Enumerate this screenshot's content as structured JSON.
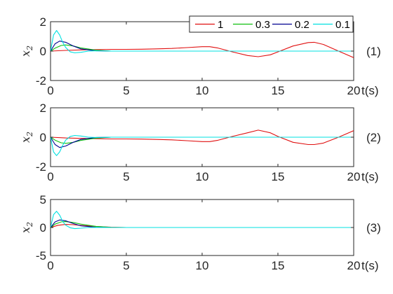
{
  "chart_data": [
    {
      "type": "line",
      "panel_label": "(1)",
      "ylabel": "x",
      "ylabel_sub": "2",
      "xlabel": "t(s)",
      "xlim": [
        0,
        20
      ],
      "ylim": [
        -2,
        2
      ],
      "xticks": [
        0,
        5,
        10,
        15,
        20
      ],
      "yticks": [
        -2,
        0,
        2
      ],
      "grid": false,
      "legend": "top-right",
      "series": [
        {
          "name": "1",
          "color": "#e01010",
          "x": [
            0,
            1,
            2,
            3,
            4,
            5,
            6,
            7,
            8,
            9,
            10,
            10.5,
            11,
            12,
            13,
            13.7,
            14.5,
            15,
            16,
            17,
            17.4,
            18,
            19,
            20
          ],
          "y": [
            0.0,
            0.05,
            0.08,
            0.1,
            0.12,
            0.12,
            0.13,
            0.15,
            0.18,
            0.24,
            0.3,
            0.3,
            0.22,
            -0.05,
            -0.3,
            -0.38,
            -0.25,
            -0.05,
            0.35,
            0.58,
            0.6,
            0.45,
            0.0,
            -0.45
          ]
        },
        {
          "name": "0.3",
          "color": "#10c010",
          "x": [
            0,
            0.3,
            0.7,
            1,
            1.5,
            2,
            3,
            4,
            5,
            20
          ],
          "y": [
            0.0,
            0.2,
            0.38,
            0.42,
            0.35,
            0.22,
            0.06,
            0.0,
            0.0,
            0.0
          ]
        },
        {
          "name": "0.2",
          "color": "#000090",
          "x": [
            0,
            0.3,
            0.6,
            1,
            1.5,
            2,
            3,
            4,
            20
          ],
          "y": [
            0.0,
            0.5,
            0.68,
            0.6,
            0.35,
            0.15,
            0.02,
            0.0,
            0.0
          ]
        },
        {
          "name": "0.1",
          "color": "#00e0e0",
          "x": [
            0,
            0.2,
            0.4,
            0.6,
            0.8,
            1,
            1.3,
            1.6,
            2,
            2.5,
            3,
            4,
            20
          ],
          "y": [
            0.0,
            1.1,
            1.4,
            1.1,
            0.6,
            0.25,
            -0.05,
            -0.12,
            -0.08,
            0.0,
            0.02,
            0.0,
            0.0
          ]
        }
      ]
    },
    {
      "type": "line",
      "panel_label": "(2)",
      "ylabel": "x",
      "ylabel_sub": "2",
      "xlabel": "t(s)",
      "xlim": [
        0,
        20
      ],
      "ylim": [
        -2,
        2
      ],
      "xticks": [
        0,
        5,
        10,
        15,
        20
      ],
      "yticks": [
        -2,
        0,
        2
      ],
      "grid": false,
      "series": [
        {
          "name": "1",
          "color": "#e01010",
          "x": [
            0,
            1,
            2,
            3,
            4,
            5,
            6,
            7,
            8,
            9,
            10,
            10.5,
            11,
            12,
            13,
            13.7,
            14.5,
            15,
            16,
            17,
            17.4,
            18,
            19,
            20
          ],
          "y": [
            0.0,
            -0.05,
            -0.08,
            -0.1,
            -0.12,
            -0.12,
            -0.13,
            -0.15,
            -0.18,
            -0.24,
            -0.3,
            -0.3,
            -0.22,
            0.05,
            0.3,
            0.48,
            0.3,
            0.05,
            -0.35,
            -0.5,
            -0.5,
            -0.4,
            0.0,
            0.45
          ]
        },
        {
          "name": "0.3",
          "color": "#10c010",
          "x": [
            0,
            0.3,
            0.7,
            1,
            1.5,
            2,
            3,
            4,
            5,
            20
          ],
          "y": [
            0.0,
            -0.2,
            -0.38,
            -0.42,
            -0.35,
            -0.22,
            -0.06,
            0.0,
            0.0,
            0.0
          ]
        },
        {
          "name": "0.2",
          "color": "#000090",
          "x": [
            0,
            0.3,
            0.6,
            1,
            1.5,
            2,
            3,
            4,
            20
          ],
          "y": [
            0.0,
            -0.5,
            -0.7,
            -0.6,
            -0.35,
            -0.15,
            -0.02,
            0.0,
            0.0
          ]
        },
        {
          "name": "0.1",
          "color": "#00e0e0",
          "x": [
            0,
            0.2,
            0.4,
            0.6,
            0.8,
            1,
            1.3,
            1.6,
            2,
            2.5,
            3,
            4,
            20
          ],
          "y": [
            0.0,
            -1.0,
            -1.25,
            -1.0,
            -0.55,
            -0.2,
            0.05,
            0.12,
            0.08,
            0.0,
            -0.02,
            0.0,
            0.0
          ]
        }
      ]
    },
    {
      "type": "line",
      "panel_label": "(3)",
      "ylabel": "x",
      "ylabel_sub": "2",
      "xlabel": "t(s)",
      "xlim": [
        0,
        20
      ],
      "ylim": [
        -5,
        5
      ],
      "xticks": [
        0,
        5,
        10,
        15,
        20
      ],
      "yticks": [
        -5,
        0,
        5
      ],
      "grid": false,
      "series": [
        {
          "name": "1",
          "color": "#e01010",
          "x": [
            0,
            0.5,
            1,
            1.5,
            2,
            3,
            4,
            5,
            20
          ],
          "y": [
            0.0,
            0.4,
            0.55,
            0.5,
            0.38,
            0.18,
            0.05,
            0.0,
            0.0
          ]
        },
        {
          "name": "0.3",
          "color": "#10c010",
          "x": [
            0,
            0.3,
            0.7,
            1,
            1.5,
            2,
            3,
            4,
            5,
            20
          ],
          "y": [
            0.0,
            0.6,
            1.0,
            1.05,
            0.9,
            0.6,
            0.2,
            0.03,
            0.0,
            0.0
          ]
        },
        {
          "name": "0.2",
          "color": "#000090",
          "x": [
            0,
            0.3,
            0.6,
            1,
            1.5,
            2,
            3,
            4,
            20
          ],
          "y": [
            0.0,
            1.0,
            1.35,
            1.2,
            0.7,
            0.3,
            0.04,
            0.0,
            0.0
          ]
        },
        {
          "name": "0.1",
          "color": "#00e0e0",
          "x": [
            0,
            0.2,
            0.4,
            0.6,
            0.8,
            1,
            1.3,
            1.6,
            2,
            2.5,
            3,
            4,
            20
          ],
          "y": [
            0.0,
            2.3,
            2.9,
            2.2,
            1.1,
            0.4,
            -0.05,
            -0.2,
            -0.12,
            0.0,
            0.02,
            0.0,
            0.0
          ]
        }
      ]
    }
  ]
}
